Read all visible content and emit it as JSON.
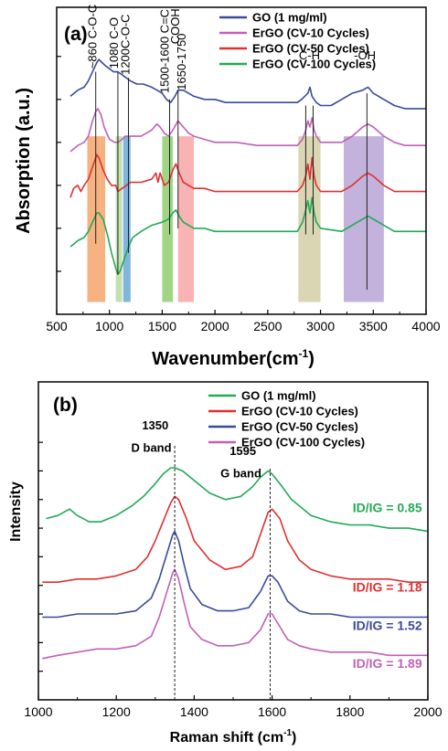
{
  "chart_data": [
    {
      "type": "line",
      "panel_label": "(a)",
      "xlabel": "Wavenumber(cm",
      "xlabel_sup": "-1",
      "xlabel_tail": ")",
      "ylabel": "Absorption (a.u.)",
      "xlim": [
        500,
        4000
      ],
      "ylim": [
        0,
        100
      ],
      "xticks": [
        500,
        1000,
        1500,
        2000,
        2500,
        3000,
        3500,
        4000
      ],
      "legend": "top-right",
      "series": [
        {
          "name": "GO (1 mg/ml)",
          "color": "#3a4a9a",
          "x": [
            630,
            700,
            760,
            800,
            840,
            880,
            900,
            930,
            960,
            1000,
            1040,
            1080,
            1120,
            1160,
            1200,
            1260,
            1320,
            1400,
            1450,
            1500,
            1540,
            1580,
            1620,
            1650,
            1700,
            1750,
            1800,
            1900,
            2000,
            2100,
            2200,
            2300,
            2400,
            2500,
            2600,
            2700,
            2780,
            2820,
            2850,
            2880,
            2900,
            2920,
            2940,
            2960,
            3000,
            3100,
            3200,
            3300,
            3400,
            3450,
            3500,
            3600,
            3700,
            3800,
            3900,
            4000
          ],
          "y": [
            71,
            73,
            74,
            76,
            79,
            82,
            83,
            82,
            81,
            80,
            79,
            79,
            78,
            77,
            76,
            75,
            75,
            74,
            73,
            72,
            70,
            69,
            71,
            73,
            73,
            72,
            71,
            70,
            70,
            69,
            69,
            69,
            69,
            69,
            69,
            69,
            69,
            70,
            71,
            72,
            74,
            71,
            70,
            69,
            68,
            68,
            70,
            72,
            73,
            74,
            72,
            70,
            68,
            67,
            67,
            67
          ]
        },
        {
          "name": "ErGO (CV-10 Cycles)",
          "color": "#c060b8",
          "x": [
            630,
            700,
            760,
            800,
            840,
            870,
            890,
            920,
            950,
            1000,
            1050,
            1080,
            1120,
            1150,
            1200,
            1300,
            1400,
            1450,
            1480,
            1520,
            1560,
            1600,
            1650,
            1700,
            1750,
            1800,
            1900,
            2000,
            2200,
            2400,
            2600,
            2780,
            2830,
            2860,
            2880,
            2900,
            2920,
            2940,
            2960,
            3000,
            3200,
            3300,
            3400,
            3450,
            3500,
            3600,
            3700,
            3800,
            4000
          ],
          "y": [
            53,
            55,
            56,
            58,
            63,
            66,
            67,
            65,
            61,
            57,
            56,
            56,
            57,
            58,
            58,
            58,
            60,
            62,
            61,
            59,
            58,
            60,
            63,
            61,
            59,
            58,
            57,
            56,
            56,
            55,
            55,
            55,
            57,
            60,
            63,
            61,
            64,
            60,
            58,
            56,
            56,
            58,
            61,
            62,
            61,
            58,
            56,
            55,
            55
          ]
        },
        {
          "name": "ErGO (CV-50 Cycles)",
          "color": "#e03030",
          "x": [
            630,
            660,
            700,
            730,
            760,
            800,
            840,
            880,
            900,
            940,
            980,
            1020,
            1060,
            1080,
            1120,
            1160,
            1200,
            1300,
            1400,
            1440,
            1460,
            1480,
            1520,
            1560,
            1600,
            1630,
            1660,
            1700,
            1750,
            1800,
            1900,
            2000,
            2200,
            2400,
            2600,
            2780,
            2830,
            2860,
            2880,
            2900,
            2920,
            2940,
            2960,
            3000,
            3200,
            3300,
            3400,
            3450,
            3500,
            3600,
            3700,
            3800,
            4000
          ],
          "y": [
            38,
            41,
            42,
            40,
            42,
            44,
            48,
            52,
            51,
            47,
            44,
            42,
            42,
            40,
            41,
            42,
            43,
            43,
            44,
            46,
            43,
            46,
            42,
            43,
            47,
            49,
            46,
            43,
            42,
            41,
            41,
            40,
            40,
            40,
            40,
            40,
            42,
            45,
            49,
            44,
            51,
            45,
            42,
            40,
            40,
            42,
            45,
            46,
            45,
            42,
            40,
            40,
            40
          ]
        },
        {
          "name": "ErGO (CV-100 Cycles)",
          "color": "#22aa55",
          "x": [
            630,
            700,
            760,
            800,
            840,
            880,
            900,
            940,
            980,
            1020,
            1060,
            1080,
            1100,
            1140,
            1180,
            1220,
            1300,
            1400,
            1500,
            1560,
            1600,
            1630,
            1660,
            1700,
            1750,
            1800,
            1900,
            2000,
            2200,
            2400,
            2600,
            2780,
            2830,
            2860,
            2880,
            2900,
            2920,
            2940,
            2960,
            3000,
            3200,
            3300,
            3400,
            3450,
            3500,
            3600,
            3700,
            3800,
            4000
          ],
          "y": [
            22,
            24,
            25,
            27,
            30,
            33,
            33,
            31,
            26,
            20,
            15,
            13,
            14,
            18,
            22,
            25,
            27,
            29,
            30,
            31,
            33,
            34,
            32,
            30,
            29,
            28,
            28,
            27,
            27,
            27,
            27,
            27,
            30,
            34,
            37,
            33,
            38,
            33,
            30,
            28,
            27,
            29,
            31,
            32,
            31,
            29,
            27,
            27,
            27
          ]
        }
      ],
      "bands": [
        {
          "from": 790,
          "to": 960,
          "color": "#f5a56a"
        },
        {
          "from": 1060,
          "to": 1120,
          "color": "#b9dca0"
        },
        {
          "from": 1130,
          "to": 1200,
          "color": "#6aa8d6"
        },
        {
          "from": 1500,
          "to": 1600,
          "color": "#8fce6e"
        },
        {
          "from": 1650,
          "to": 1800,
          "color": "#f7a6a6"
        },
        {
          "from": 2790,
          "to": 3000,
          "color": "#d4cfa6"
        },
        {
          "from": 3220,
          "to": 3600,
          "color": "#b9a4d6"
        }
      ],
      "vlines": [
        {
          "x": 870,
          "y0": 23,
          "y1": 79
        },
        {
          "x": 1080,
          "y0": 13,
          "y1": 79
        },
        {
          "x": 1180,
          "y0": 20,
          "y1": 77
        },
        {
          "x": 1570,
          "y0": 26,
          "y1": 70
        },
        {
          "x": 1650,
          "y0": 28,
          "y1": 73
        },
        {
          "x": 2860,
          "y0": 26,
          "y1": 68
        },
        {
          "x": 2930,
          "y0": 26,
          "y1": 68
        },
        {
          "x": 3440,
          "y0": 8,
          "y1": 72
        }
      ],
      "annotations": [
        {
          "text": "~860 C-O-C",
          "x": 875,
          "y": 80,
          "rotate": true
        },
        {
          "text": "1080 C-O",
          "x": 1080,
          "y": 80,
          "rotate": true
        },
        {
          "text": "1200C-O-C",
          "x": 1190,
          "y": 78,
          "rotate": true
        },
        {
          "text": "1500-1600 C=C",
          "x": 1560,
          "y": 72,
          "rotate": true
        },
        {
          "text": "1650-1750",
          "x": 1720,
          "y": 73,
          "rotate": true
        },
        {
          "text": "COOH",
          "x": 1660,
          "y": 88,
          "rotate": true
        },
        {
          "text": "C-H",
          "x": 2895,
          "y": 83,
          "rotate": false
        },
        {
          "text": "-OH",
          "x": 3420,
          "y": 83,
          "rotate": false
        }
      ]
    },
    {
      "type": "line",
      "panel_label": "(b)",
      "xlabel": "Raman shift (cm",
      "xlabel_sup": "-1",
      "xlabel_tail": ")",
      "ylabel": "Intensity",
      "xlim": [
        1000,
        2000
      ],
      "ylim": [
        0,
        100
      ],
      "xticks": [
        1000,
        1200,
        1400,
        1600,
        1800,
        2000
      ],
      "legend": "top-right",
      "series": [
        {
          "name": "GO (1 mg/ml)",
          "color": "#22aa55",
          "x": [
            1020,
            1050,
            1080,
            1100,
            1130,
            1160,
            1200,
            1240,
            1270,
            1300,
            1320,
            1340,
            1350,
            1370,
            1400,
            1440,
            1480,
            1520,
            1550,
            1570,
            1590,
            1600,
            1620,
            1650,
            1700,
            1750,
            1800,
            1850,
            1900,
            1950,
            2000
          ],
          "y": [
            57,
            58,
            60,
            58,
            56,
            56,
            58,
            61,
            64,
            68,
            71,
            73,
            73,
            72,
            69,
            65,
            63,
            64,
            67,
            70,
            72,
            71,
            68,
            63,
            58,
            56,
            55,
            55,
            54,
            54,
            53
          ]
        },
        {
          "name": "ErGO (CV-10 Cycles)",
          "color": "#e03030",
          "x": [
            1010,
            1050,
            1100,
            1150,
            1200,
            1250,
            1280,
            1300,
            1320,
            1340,
            1350,
            1360,
            1380,
            1400,
            1440,
            1480,
            1520,
            1550,
            1570,
            1590,
            1600,
            1620,
            1640,
            1670,
            1700,
            1750,
            1800,
            1850,
            1900,
            1950,
            2000
          ],
          "y": [
            37,
            37,
            38,
            38,
            39,
            41,
            45,
            50,
            56,
            62,
            64,
            63,
            57,
            50,
            44,
            41,
            42,
            45,
            52,
            59,
            60,
            57,
            50,
            44,
            41,
            39,
            38,
            38,
            38,
            37,
            37
          ]
        },
        {
          "name": "ErGO (CV-50 Cycles)",
          "color": "#3a4a9a",
          "x": [
            1010,
            1050,
            1100,
            1150,
            1200,
            1250,
            1290,
            1310,
            1330,
            1345,
            1350,
            1360,
            1375,
            1390,
            1420,
            1460,
            1500,
            1540,
            1570,
            1590,
            1600,
            1615,
            1640,
            1670,
            1700,
            1750,
            1800,
            1850,
            1900,
            1950,
            2000
          ],
          "y": [
            26,
            26,
            27,
            27,
            27,
            28,
            32,
            38,
            46,
            52,
            53,
            50,
            42,
            35,
            30,
            28,
            28,
            29,
            34,
            39,
            39,
            37,
            31,
            28,
            27,
            27,
            26,
            26,
            26,
            26,
            26
          ]
        },
        {
          "name": "ErGO (CV-100 Cycles)",
          "color": "#c060b8",
          "x": [
            1010,
            1050,
            1100,
            1150,
            1200,
            1250,
            1290,
            1310,
            1330,
            1345,
            1350,
            1360,
            1375,
            1390,
            1420,
            1460,
            1500,
            1540,
            1570,
            1590,
            1600,
            1615,
            1640,
            1670,
            1700,
            1750,
            1800,
            1850,
            1900,
            1950,
            2000
          ],
          "y": [
            13,
            14,
            15,
            16,
            16,
            17,
            20,
            26,
            34,
            40,
            41,
            38,
            30,
            23,
            19,
            17,
            17,
            18,
            22,
            27,
            27,
            24,
            19,
            17,
            16,
            15,
            15,
            15,
            14,
            14,
            14
          ]
        }
      ],
      "vlines": [
        {
          "x": 1350,
          "y0": 0,
          "y1": 80
        },
        {
          "x": 1595,
          "y0": 0,
          "y1": 73
        }
      ],
      "annotations": [
        {
          "text": "1350",
          "x": 1300,
          "y": 85
        },
        {
          "text": "D band",
          "x": 1290,
          "y": 78
        },
        {
          "text": "1595",
          "x": 1525,
          "y": 77
        },
        {
          "text": "G band",
          "x": 1520,
          "y": 70
        }
      ],
      "ratios": [
        {
          "text": "ID/IG = 0.85",
          "x": 1985,
          "y": 59,
          "color": "#22aa55"
        },
        {
          "text": "ID/IG = 1.18",
          "x": 1985,
          "y": 34,
          "color": "#e03030"
        },
        {
          "text": "ID/IG = 1.52",
          "x": 1985,
          "y": 22,
          "color": "#3a4a9a"
        },
        {
          "text": "ID/IG = 1.89",
          "x": 1985,
          "y": 10,
          "color": "#c060b8"
        }
      ]
    }
  ]
}
